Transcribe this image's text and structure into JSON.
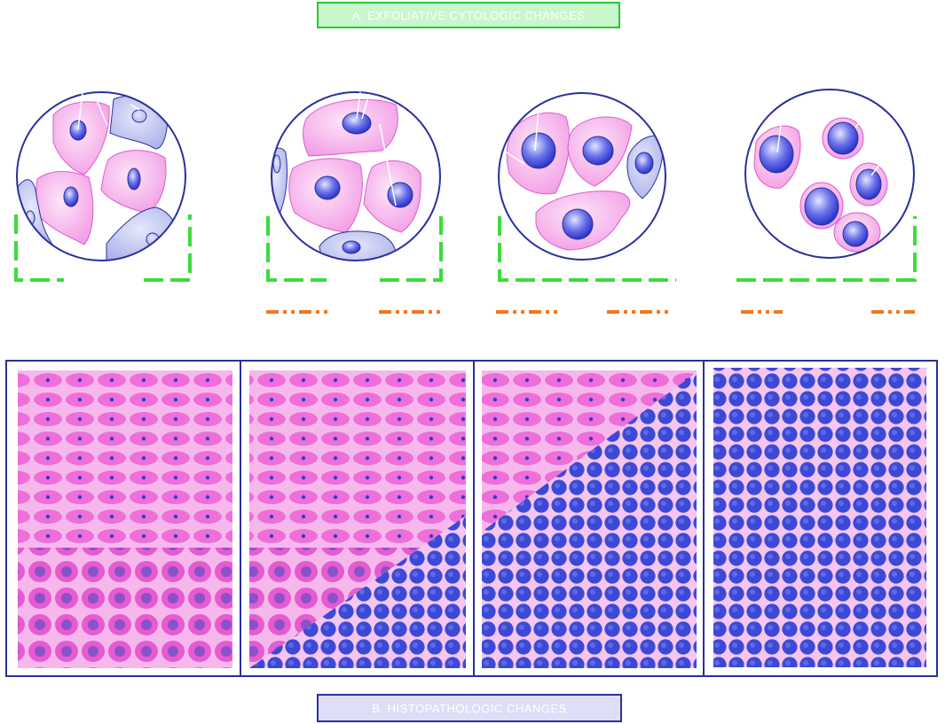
{
  "labels": {
    "panel_a_title": "A. EXFOLIATIVE CYTOLOGIC CHANGES",
    "panel_b_title": "B. HISTOPATHOLOGIC CHANGES"
  },
  "colors": {
    "outline": "#2b2f9c",
    "pink_cell": "#f7a3ea",
    "pink_cell_light": "#fbd0f3",
    "blue_cell": "#b8bdf2",
    "nucleus": "#4a53e0",
    "nucleus_light": "#c7cbff",
    "bracket_green": "#3cdc3c",
    "dash_orange": "#f07820",
    "tissue_pink": "#f6b3ea",
    "tissue_pink_cell": "#ec5fd6",
    "tissue_blue_cell": "#3f4bd8"
  },
  "tissue_panels": [
    {
      "name": "tissue-panel-normal",
      "blue_fraction": 0.0
    },
    {
      "name": "tissue-panel-mild",
      "blue_fraction": 0.3
    },
    {
      "name": "tissue-panel-moderate",
      "blue_fraction": 0.7
    },
    {
      "name": "tissue-panel-severe",
      "blue_fraction": 1.0
    }
  ]
}
